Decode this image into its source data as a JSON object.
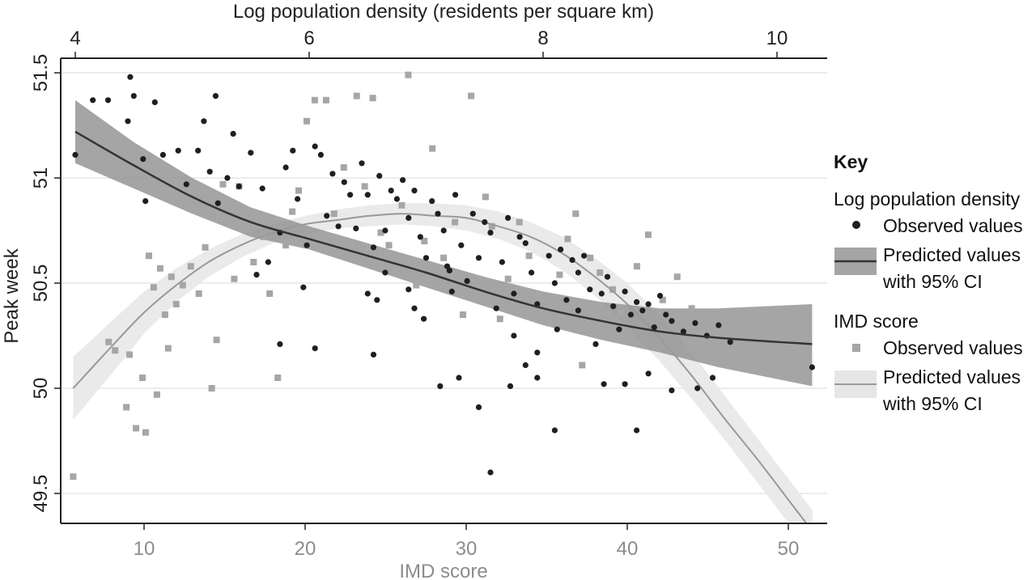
{
  "chart_data": {
    "type": "scatter",
    "top_axis": {
      "label": "Log population density (residents per square km)",
      "range": [
        4,
        10.4
      ],
      "ticks": [
        4,
        6,
        8,
        10
      ]
    },
    "bottom_axis": {
      "label": "IMD score",
      "range": [
        5.3,
        52.6
      ],
      "ticks": [
        10,
        20,
        30,
        40,
        50
      ]
    },
    "y_axis": {
      "label": "Peak week",
      "range": [
        49.37,
        51.56
      ],
      "ticks": [
        "49.5",
        "50",
        "50.5",
        "51",
        "51.5"
      ],
      "tick_values": [
        49.5,
        50,
        50.5,
        51,
        51.5
      ]
    },
    "grid": "horizontal",
    "legend": {
      "position": "right",
      "title": "Key",
      "groups": [
        {
          "title": "Log population density",
          "observed": "Observed values",
          "predicted_line1": "Predicted values",
          "predicted_line2": "with 95% CI"
        },
        {
          "title": "IMD score",
          "observed": "Observed values",
          "predicted_line1": "Predicted values",
          "predicted_line2": "with 95% CI"
        }
      ]
    },
    "colors": {
      "density_points": "#1f1f1f",
      "density_line": "#333333",
      "density_band": "#8f8f8f",
      "imd_points": "#a6a6a6",
      "imd_line": "#999999",
      "imd_band": "#e6e6e6",
      "gridline": "#e6e6e6",
      "axis": "#222222"
    },
    "series": [
      {
        "id": "imd_band",
        "type": "area",
        "x_axis": "bottom",
        "x": [
          5.6,
          8,
          10,
          12,
          14,
          16,
          18,
          20,
          22,
          24,
          26,
          28,
          30,
          32,
          34,
          36,
          38,
          40,
          42,
          44,
          46,
          48,
          50,
          51.5
        ],
        "upper": [
          50.15,
          50.32,
          50.46,
          50.57,
          50.66,
          50.73,
          50.78,
          50.82,
          50.85,
          50.87,
          50.88,
          50.88,
          50.87,
          50.84,
          50.79,
          50.72,
          50.62,
          50.5,
          50.35,
          50.17,
          49.97,
          49.77,
          49.57,
          49.42
        ],
        "lower": [
          49.85,
          50.07,
          50.26,
          50.41,
          50.53,
          50.62,
          50.69,
          50.73,
          50.76,
          50.77,
          50.78,
          50.77,
          50.75,
          50.71,
          50.65,
          50.56,
          50.44,
          50.29,
          50.13,
          49.95,
          49.76,
          49.56,
          49.36,
          49.23
        ]
      },
      {
        "id": "density_band",
        "type": "area",
        "x_axis": "top",
        "x": [
          4,
          4.5,
          5,
          5.5,
          6,
          6.5,
          7,
          7.5,
          8,
          8.5,
          9,
          9.5,
          10.3
        ],
        "upper": [
          51.37,
          51.17,
          51.0,
          50.86,
          50.77,
          50.69,
          50.61,
          50.53,
          50.46,
          50.41,
          50.38,
          50.38,
          50.4
        ],
        "lower": [
          51.07,
          50.95,
          50.83,
          50.72,
          50.66,
          50.57,
          50.48,
          50.39,
          50.3,
          50.23,
          50.17,
          50.1,
          50.01
        ]
      },
      {
        "id": "imd_line",
        "type": "line",
        "x_axis": "bottom",
        "x": [
          5.6,
          8,
          10,
          12,
          14,
          16,
          18,
          20,
          22,
          24,
          26,
          28,
          30,
          32,
          34,
          36,
          38,
          40,
          42,
          44,
          46,
          48,
          50,
          51.5
        ],
        "y": [
          50.0,
          50.2,
          50.36,
          50.49,
          50.6,
          50.68,
          50.74,
          50.78,
          50.8,
          50.82,
          50.83,
          50.82,
          50.81,
          50.77,
          50.72,
          50.64,
          50.53,
          50.4,
          50.24,
          50.06,
          49.86,
          49.67,
          49.47,
          49.32
        ]
      },
      {
        "id": "density_line",
        "type": "line",
        "x_axis": "top",
        "x": [
          4,
          4.5,
          5,
          5.5,
          6,
          6.5,
          7,
          7.5,
          8,
          8.5,
          9,
          9.5,
          10.3
        ],
        "y": [
          51.22,
          51.06,
          50.91,
          50.79,
          50.71,
          50.63,
          50.55,
          50.46,
          50.38,
          50.32,
          50.27,
          50.24,
          50.21
        ]
      },
      {
        "id": "imd_points",
        "type": "scatter",
        "marker": "square",
        "x_axis": "bottom",
        "points": [
          [
            5.6,
            49.58
          ],
          [
            7.8,
            50.22
          ],
          [
            8.2,
            50.18
          ],
          [
            8.9,
            49.91
          ],
          [
            9.1,
            50.16
          ],
          [
            9.5,
            49.81
          ],
          [
            9.9,
            50.05
          ],
          [
            10.1,
            49.79
          ],
          [
            10.3,
            50.63
          ],
          [
            10.6,
            50.48
          ],
          [
            10.8,
            49.97
          ],
          [
            11.0,
            50.57
          ],
          [
            11.3,
            50.35
          ],
          [
            11.5,
            50.19
          ],
          [
            11.7,
            50.53
          ],
          [
            12.0,
            50.4
          ],
          [
            12.4,
            50.49
          ],
          [
            12.9,
            50.58
          ],
          [
            13.4,
            50.45
          ],
          [
            13.8,
            50.67
          ],
          [
            14.2,
            50.0
          ],
          [
            14.5,
            50.23
          ],
          [
            14.9,
            50.97
          ],
          [
            15.3,
            50.79
          ],
          [
            15.6,
            50.52
          ],
          [
            15.9,
            50.96
          ],
          [
            16.2,
            50.82
          ],
          [
            16.8,
            50.6
          ],
          [
            17.4,
            50.72
          ],
          [
            17.8,
            50.45
          ],
          [
            18.3,
            50.05
          ],
          [
            18.8,
            50.68
          ],
          [
            19.2,
            50.84
          ],
          [
            19.6,
            50.94
          ],
          [
            20.1,
            51.27
          ],
          [
            20.6,
            51.37
          ],
          [
            21.3,
            51.37
          ],
          [
            21.8,
            50.83
          ],
          [
            22.4,
            51.05
          ],
          [
            23.2,
            51.39
          ],
          [
            23.7,
            50.96
          ],
          [
            24.2,
            51.38
          ],
          [
            24.7,
            50.74
          ],
          [
            25.2,
            50.68
          ],
          [
            26.0,
            50.87
          ],
          [
            26.4,
            51.49
          ],
          [
            26.9,
            50.49
          ],
          [
            27.4,
            50.7
          ],
          [
            27.9,
            51.14
          ],
          [
            28.6,
            50.62
          ],
          [
            29.3,
            50.79
          ],
          [
            29.8,
            50.35
          ],
          [
            30.3,
            51.39
          ],
          [
            30.8,
            50.48
          ],
          [
            31.2,
            50.91
          ],
          [
            31.6,
            50.77
          ],
          [
            32.1,
            50.33
          ],
          [
            32.6,
            50.52
          ],
          [
            33.3,
            50.79
          ],
          [
            33.9,
            50.63
          ],
          [
            34.4,
            50.44
          ],
          [
            35.2,
            50.31
          ],
          [
            35.8,
            50.54
          ],
          [
            36.3,
            50.71
          ],
          [
            36.8,
            50.83
          ],
          [
            37.2,
            50.11
          ],
          [
            37.7,
            50.62
          ],
          [
            38.3,
            50.55
          ],
          [
            39.1,
            50.47
          ],
          [
            39.6,
            50.36
          ],
          [
            40.6,
            50.58
          ],
          [
            41.3,
            50.73
          ],
          [
            42.2,
            50.42
          ],
          [
            43.1,
            50.53
          ],
          [
            44.0,
            50.38
          ],
          [
            44.9,
            50.28
          ],
          [
            46.7,
            50.33
          ]
        ]
      },
      {
        "id": "density_points",
        "type": "scatter",
        "marker": "circle",
        "x_axis": "top",
        "points": [
          [
            4.0,
            51.11
          ],
          [
            4.15,
            51.37
          ],
          [
            4.28,
            51.37
          ],
          [
            4.45,
            51.27
          ],
          [
            4.47,
            51.48
          ],
          [
            4.5,
            51.39
          ],
          [
            4.58,
            51.09
          ],
          [
            4.6,
            50.89
          ],
          [
            4.68,
            51.36
          ],
          [
            4.75,
            51.11
          ],
          [
            4.88,
            51.13
          ],
          [
            4.95,
            50.97
          ],
          [
            5.05,
            51.13
          ],
          [
            5.1,
            51.27
          ],
          [
            5.15,
            51.03
          ],
          [
            5.2,
            51.39
          ],
          [
            5.22,
            50.88
          ],
          [
            5.3,
            51.0
          ],
          [
            5.35,
            51.21
          ],
          [
            5.4,
            50.96
          ],
          [
            5.5,
            51.12
          ],
          [
            5.6,
            50.95
          ],
          [
            5.65,
            50.6
          ],
          [
            5.75,
            50.74
          ],
          [
            5.8,
            51.05
          ],
          [
            5.86,
            51.13
          ],
          [
            5.9,
            50.9
          ],
          [
            5.98,
            50.68
          ],
          [
            6.05,
            51.15
          ],
          [
            6.1,
            51.11
          ],
          [
            6.15,
            50.82
          ],
          [
            6.2,
            51.02
          ],
          [
            6.25,
            50.77
          ],
          [
            6.3,
            50.98
          ],
          [
            6.35,
            50.92
          ],
          [
            6.4,
            50.76
          ],
          [
            6.45,
            51.07
          ],
          [
            6.5,
            50.92
          ],
          [
            6.55,
            50.67
          ],
          [
            6.6,
            51.01
          ],
          [
            6.65,
            50.75
          ],
          [
            6.7,
            50.94
          ],
          [
            6.75,
            50.9
          ],
          [
            6.8,
            50.99
          ],
          [
            6.85,
            50.81
          ],
          [
            6.9,
            50.94
          ],
          [
            6.95,
            50.72
          ],
          [
            7.0,
            50.62
          ],
          [
            7.05,
            50.89
          ],
          [
            7.1,
            50.83
          ],
          [
            7.15,
            50.75
          ],
          [
            7.2,
            50.56
          ],
          [
            7.25,
            50.92
          ],
          [
            7.3,
            50.68
          ],
          [
            7.35,
            50.51
          ],
          [
            7.4,
            50.83
          ],
          [
            7.45,
            50.62
          ],
          [
            7.5,
            50.79
          ],
          [
            7.55,
            50.74
          ],
          [
            7.6,
            50.38
          ],
          [
            7.65,
            50.6
          ],
          [
            7.7,
            50.81
          ],
          [
            7.75,
            50.45
          ],
          [
            7.8,
            50.72
          ],
          [
            7.85,
            50.69
          ],
          [
            7.9,
            50.55
          ],
          [
            7.95,
            50.4
          ],
          [
            8.05,
            50.63
          ],
          [
            8.1,
            50.5
          ],
          [
            8.15,
            50.66
          ],
          [
            8.2,
            50.42
          ],
          [
            8.25,
            50.61
          ],
          [
            8.3,
            50.55
          ],
          [
            8.35,
            50.63
          ],
          [
            8.4,
            50.47
          ],
          [
            8.45,
            50.21
          ],
          [
            8.5,
            50.45
          ],
          [
            8.55,
            50.53
          ],
          [
            8.6,
            50.39
          ],
          [
            8.65,
            50.28
          ],
          [
            8.7,
            50.46
          ],
          [
            8.75,
            50.35
          ],
          [
            8.8,
            50.41
          ],
          [
            8.85,
            50.37
          ],
          [
            8.9,
            50.4
          ],
          [
            8.95,
            50.29
          ],
          [
            9.0,
            50.44
          ],
          [
            9.05,
            50.35
          ],
          [
            9.1,
            50.32
          ],
          [
            9.2,
            50.27
          ],
          [
            9.3,
            50.31
          ],
          [
            9.4,
            50.25
          ],
          [
            9.5,
            50.3
          ],
          [
            9.6,
            50.22
          ],
          [
            10.3,
            50.1
          ],
          [
            6.5,
            50.45
          ],
          [
            6.98,
            50.33
          ],
          [
            7.22,
            50.46
          ],
          [
            7.72,
            50.01
          ],
          [
            7.95,
            50.05
          ],
          [
            8.52,
            50.02
          ],
          [
            9.32,
            50.0
          ],
          [
            8.8,
            49.8
          ],
          [
            9.1,
            49.99
          ],
          [
            7.45,
            49.91
          ],
          [
            7.55,
            49.6
          ],
          [
            8.1,
            49.8
          ],
          [
            6.05,
            50.19
          ],
          [
            5.75,
            50.21
          ],
          [
            6.55,
            50.16
          ],
          [
            7.12,
            50.01
          ],
          [
            6.85,
            50.47
          ],
          [
            7.85,
            50.11
          ],
          [
            8.3,
            50.37
          ],
          [
            7.28,
            50.05
          ],
          [
            6.65,
            50.55
          ],
          [
            7.18,
            50.58
          ],
          [
            8.7,
            50.02
          ],
          [
            5.55,
            50.54
          ],
          [
            5.95,
            50.48
          ],
          [
            6.58,
            50.42
          ],
          [
            7.75,
            50.25
          ],
          [
            7.95,
            50.17
          ],
          [
            6.9,
            50.38
          ],
          [
            8.12,
            50.28
          ],
          [
            9.45,
            50.05
          ],
          [
            8.9,
            50.07
          ]
        ]
      }
    ]
  }
}
